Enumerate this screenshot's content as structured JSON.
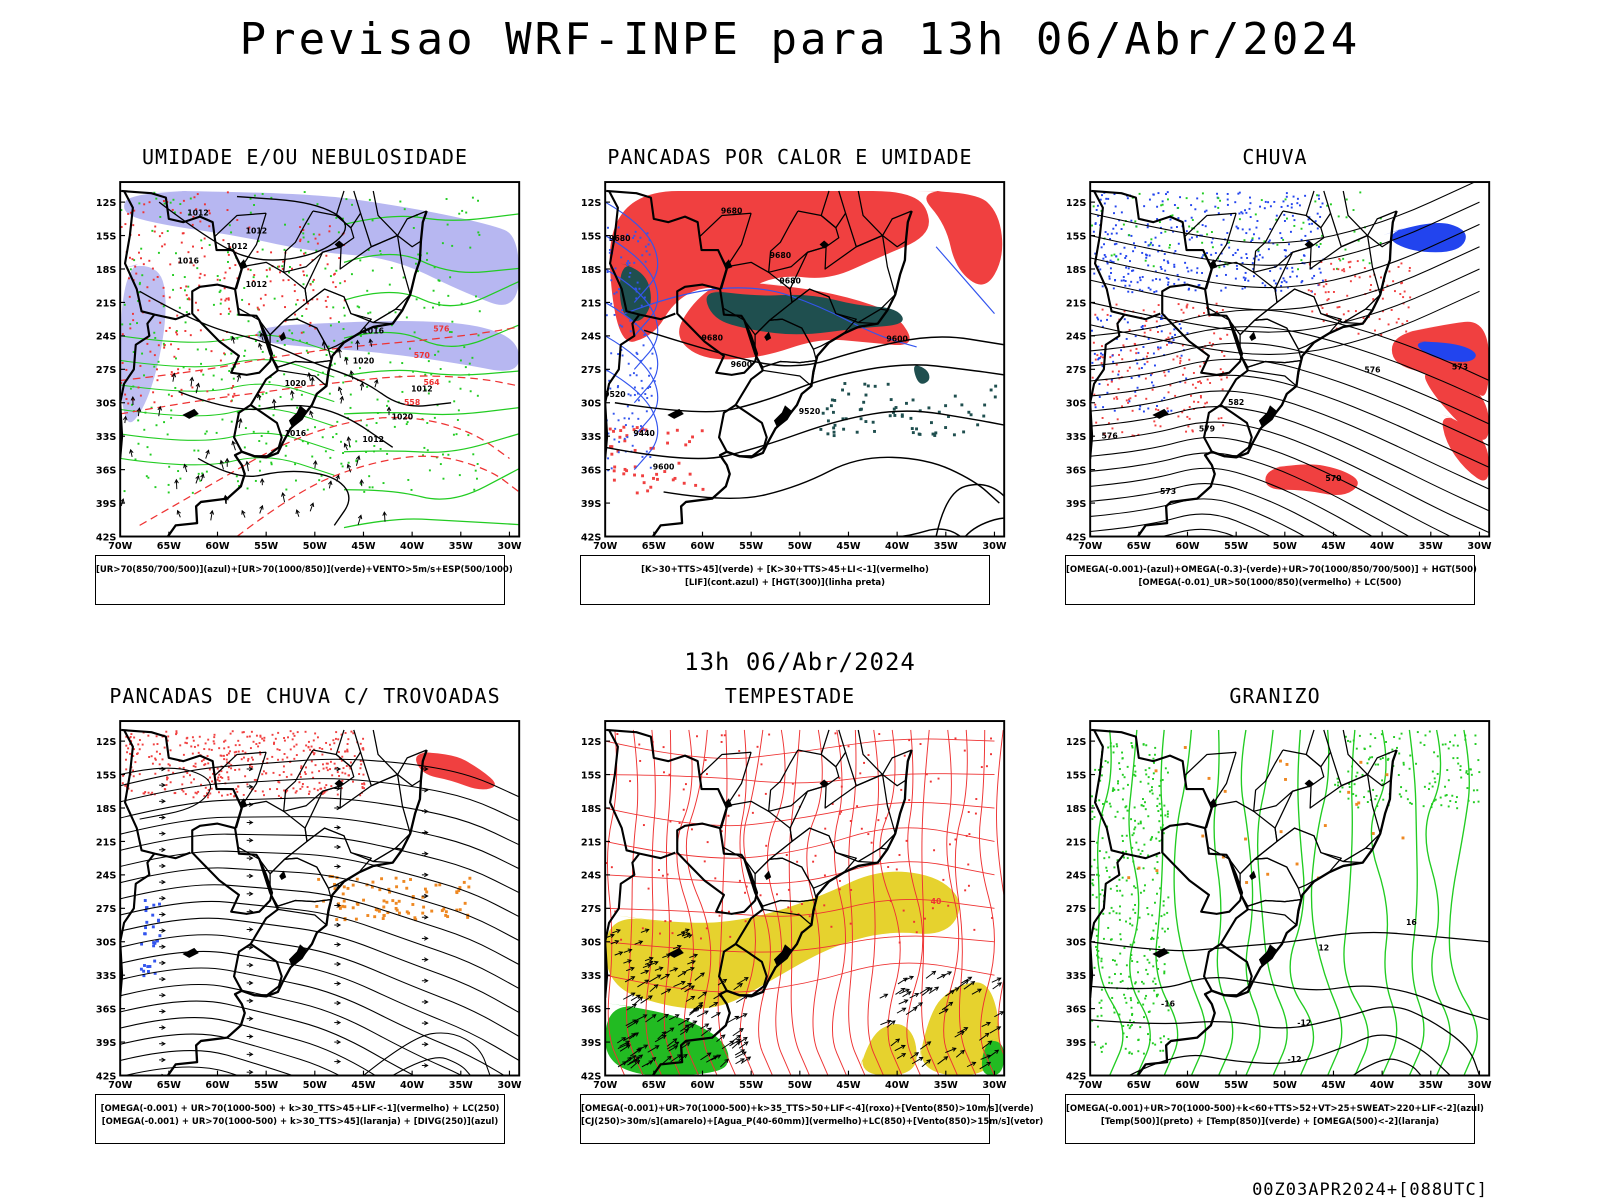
{
  "main_title": "Previsao WRF-INPE  para 13h 06/Abr/2024",
  "middle_title": "13h 06/Abr/2024",
  "run_stamp": "00Z03APR2024+[088UTC]",
  "axes": {
    "lat_labels": [
      "12S",
      "15S",
      "18S",
      "21S",
      "24S",
      "27S",
      "30S",
      "33S",
      "36S",
      "39S",
      "42S"
    ],
    "lon_labels": [
      "70W",
      "65W",
      "60W",
      "55W",
      "50W",
      "45W",
      "40W",
      "35W",
      "30W"
    ]
  },
  "panels": [
    {
      "title": "UMIDADE E/OU NEBULOSIDADE",
      "legend": [
        "[UR>70(850/700/500)](azul)+[UR>70(1000/850)](verde)+VENTO>5m/s+ESP(500/1000)"
      ],
      "contour_labels": [
        "1012",
        "1012",
        "1012",
        "1016",
        "1012",
        "1016",
        "1020",
        "1020",
        "1016",
        "1020",
        "576",
        "570",
        "564",
        "558"
      ],
      "colors": {
        "blue_shade": "#aaaaee",
        "green": "#22cc22",
        "red": "#ee3333",
        "black": "#000000"
      }
    },
    {
      "title": "PANCADAS POR CALOR E UMIDADE",
      "legend": [
        "[K>30+TTS>45](verde) + [K>30+TTS>45+LI<-1](vermelho)",
        "[LIF](cont.azul) + [HGT(300)](linha preta)"
      ],
      "contour_labels": [
        "9680",
        "9680",
        "9680",
        "9680",
        "9680",
        "9600",
        "9600",
        "9520",
        "9520",
        "9440",
        "9600"
      ],
      "colors": {
        "red": "#f04040",
        "teal": "#1f4f4f",
        "blue": "#3355ee",
        "black": "#000000"
      }
    },
    {
      "title": "CHUVA",
      "legend": [
        "[OMEGA(-0.001)-(azul)+OMEGA(-0.3)-(verde)+UR>70(1000/850/700/500)] + HGT(500)",
        "[OMEGA(-0.01)_UR>50(1000/850)(vermelho) + LC(500)"
      ],
      "contour_labels": [
        "582",
        "579",
        "576",
        "573",
        "570",
        "573",
        "576"
      ],
      "colors": {
        "red": "#f04040",
        "blue": "#2244ee",
        "green": "#22cc22",
        "black": "#000000"
      }
    },
    {
      "title": "PANCADAS DE CHUVA C/ TROVOADAS",
      "legend": [
        "[OMEGA(-0.001) + UR>70(1000-500) + k>30_TTS>45+LIF<-1](vermelho) + LC(250)",
        "[OMEGA(-0.001) + UR>70(1000-500) + k>30_TTS>45](laranja) + [DIVG(250)](azul)"
      ],
      "contour_labels": [],
      "colors": {
        "red": "#f04040",
        "orange": "#ee8822",
        "blue": "#3355ee",
        "black": "#000000"
      }
    },
    {
      "title": "TEMPESTADE",
      "legend": [
        "[OMEGA(-0.001)+UR>70(1000-500)+k>35_TTS>50+LIF<-4](roxo)+[Vento(850)>10m/s](verde)",
        "[CJ(250)>30m/s](amarelo)+[Agua_P(40-60mm)](vermelho)+LC(850)+[Vento(850)>15m/s](vetor)"
      ],
      "contour_labels": [
        "40"
      ],
      "colors": {
        "red": "#ee3333",
        "yellow": "#e6d22e",
        "green": "#22bb22",
        "black": "#000000"
      }
    },
    {
      "title": "GRANIZO",
      "legend": [
        "[OMEGA(-0.001)+UR>70(1000-500)+k<60+TTS>52+VT>25+SWEAT>220+LIF<-2](azul)",
        "[Temp(500)](preto) + [Temp(850)](verde) + [OMEGA(500)<-2](laranja)"
      ],
      "contour_labels": [
        "-12",
        "-16",
        "12",
        "16",
        "-12"
      ],
      "colors": {
        "green": "#22cc22",
        "orange": "#ee8822",
        "black": "#000000"
      }
    }
  ]
}
